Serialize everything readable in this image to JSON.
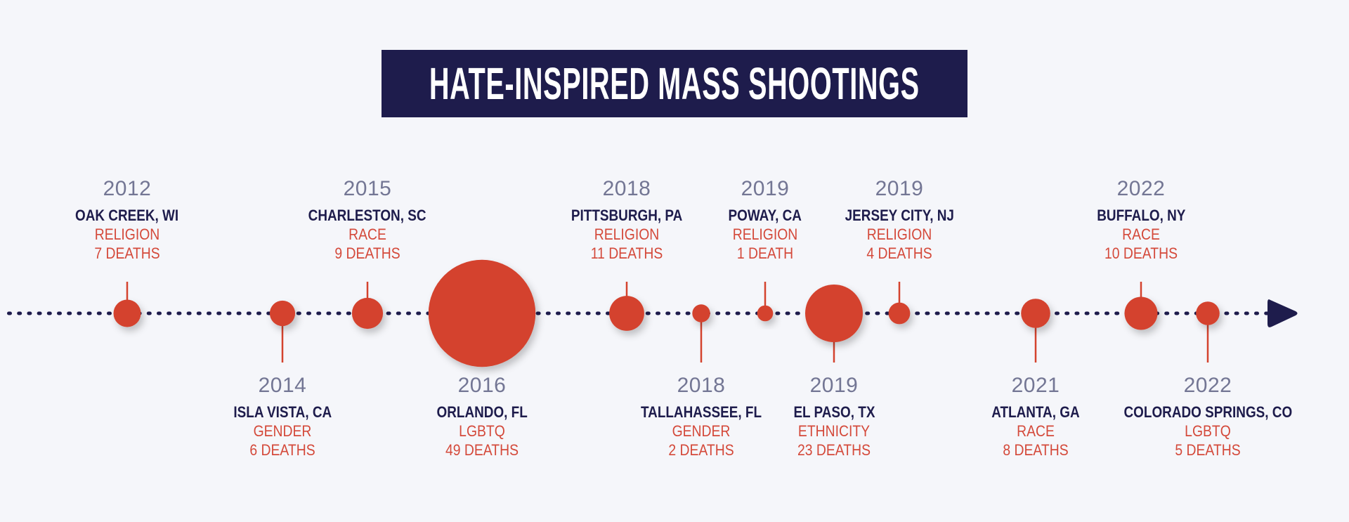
{
  "title": "HATE-INSPIRED MASS SHOOTINGS",
  "colors": {
    "background": "#F5F6FA",
    "title_bar": "#1E1C4C",
    "title_text": "#FFFFFF",
    "timeline_dots": "#1E1C4C",
    "arrow": "#1E1C4C",
    "event_circle": "#D4432E",
    "year_text": "#737694",
    "city_text": "#1E1C4C",
    "category_text": "#D4493A"
  },
  "chart_data": {
    "type": "scatter",
    "subtype": "timeline-bubble",
    "title": "HATE-INSPIRED MASS SHOOTINGS",
    "xlabel": "",
    "ylabel": "",
    "size_encodes": "deaths",
    "direction_marker": "arrow-right",
    "events": [
      {
        "year": "2012",
        "location": "OAK CREEK, WI",
        "motive": "RELIGION",
        "deaths": 7,
        "deaths_label": "7 DEATHS",
        "label_side": "above"
      },
      {
        "year": "2014",
        "location": "ISLA VISTA, CA",
        "motive": "GENDER",
        "deaths": 6,
        "deaths_label": "6 DEATHS",
        "label_side": "below"
      },
      {
        "year": "2015",
        "location": "CHARLESTON, SC",
        "motive": "RACE",
        "deaths": 9,
        "deaths_label": "9 DEATHS",
        "label_side": "above"
      },
      {
        "year": "2016",
        "location": "ORLANDO, FL",
        "motive": "LGBTQ",
        "deaths": 49,
        "deaths_label": "49 DEATHS",
        "label_side": "below"
      },
      {
        "year": "2018",
        "location": "PITTSBURGH, PA",
        "motive": "RELIGION",
        "deaths": 11,
        "deaths_label": "11 DEATHS",
        "label_side": "above"
      },
      {
        "year": "2018",
        "location": "TALLAHASSEE, FL",
        "motive": "GENDER",
        "deaths": 2,
        "deaths_label": "2 DEATHS",
        "label_side": "below"
      },
      {
        "year": "2019",
        "location": "POWAY, CA",
        "motive": "RELIGION",
        "deaths": 1,
        "deaths_label": "1 DEATH",
        "label_side": "above"
      },
      {
        "year": "2019",
        "location": "EL PASO, TX",
        "motive": "ETHNICITY",
        "deaths": 23,
        "deaths_label": "23 DEATHS",
        "label_side": "below"
      },
      {
        "year": "2019",
        "location": "JERSEY CITY, NJ",
        "motive": "RELIGION",
        "deaths": 4,
        "deaths_label": "4 DEATHS",
        "label_side": "above"
      },
      {
        "year": "2021",
        "location": "ATLANTA, GA",
        "motive": "RACE",
        "deaths": 8,
        "deaths_label": "8 DEATHS",
        "label_side": "below"
      },
      {
        "year": "2022",
        "location": "BUFFALO, NY",
        "motive": "RACE",
        "deaths": 10,
        "deaths_label": "10 DEATHS",
        "label_side": "above"
      },
      {
        "year": "2022",
        "location": "COLORADO SPRINGS, CO",
        "motive": "LGBTQ",
        "deaths": 5,
        "deaths_label": "5 DEATHS",
        "label_side": "below"
      }
    ]
  }
}
